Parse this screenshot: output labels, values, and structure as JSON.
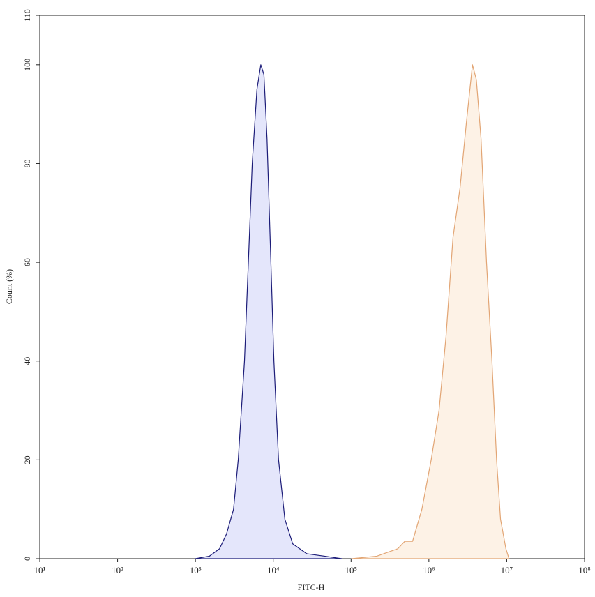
{
  "chart_data": {
    "type": "area",
    "x_label": "FITC-H",
    "y_label": "Count (%)",
    "xscale": "log",
    "xlim": [
      10,
      100000000
    ],
    "xticks": [
      {
        "value": 10,
        "label": "10¹"
      },
      {
        "value": 100,
        "label": "10²"
      },
      {
        "value": 1000,
        "label": "10³"
      },
      {
        "value": 10000,
        "label": "10⁴"
      },
      {
        "value": 100000,
        "label": "10⁵"
      },
      {
        "value": 1000000,
        "label": "10⁶"
      },
      {
        "value": 10000000,
        "label": "10⁷"
      },
      {
        "value": 100000000,
        "label": "10⁸"
      }
    ],
    "ylim": [
      0,
      110
    ],
    "yticks": [
      0,
      20,
      40,
      60,
      80,
      100,
      110
    ],
    "series": [
      {
        "color": "#1c1c78",
        "fill": "#e4e6fb",
        "x": [
          1000,
          1510,
          2040,
          2510,
          3090,
          3550,
          4270,
          4790,
          5370,
          6170,
          6920,
          7590,
          8320,
          9330,
          10200,
          11700,
          14100,
          17800,
          26900,
          45700,
          75900
        ],
        "values": [
          0,
          0.5,
          2,
          5,
          10,
          20,
          40,
          60,
          80,
          95,
          100,
          98,
          85,
          60,
          40,
          20,
          8,
          3,
          1,
          0.5,
          0
        ]
      },
      {
        "color": "#e2a574",
        "fill": "#fdf2e6",
        "x": [
          102000,
          214000,
          398000,
          490000,
          617000,
          813000,
          1070000,
          1350000,
          1660000,
          2040000,
          2510000,
          3020000,
          3630000,
          4070000,
          4680000,
          5500000,
          6460000,
          7410000,
          8320000,
          9770000,
          10700000
        ],
        "values": [
          0,
          0.5,
          2,
          3.5,
          3.5,
          10,
          20,
          30,
          45,
          65,
          75,
          88,
          100,
          97,
          85,
          60,
          40,
          20,
          8,
          2,
          0
        ]
      }
    ]
  }
}
